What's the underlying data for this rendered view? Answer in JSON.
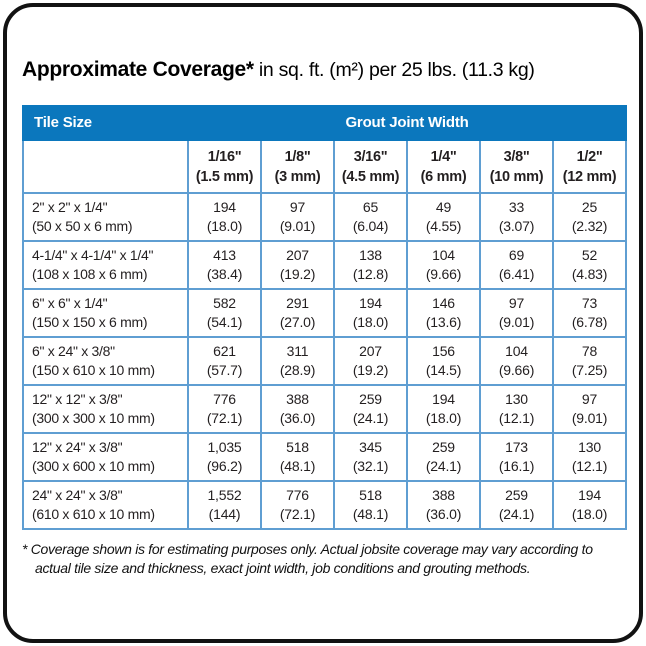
{
  "chart_data": {
    "type": "table",
    "title_bold": "Approximate Coverage*",
    "title_rest": " in sq. ft. (m²) per 25 lbs. (11.3 kg)",
    "header": {
      "tile_size": "Tile Size",
      "grout_joint_width": "Grout Joint Width"
    },
    "columns": [
      {
        "width": "1/16\"",
        "metric": "(1.5 mm)"
      },
      {
        "width": "1/8\"",
        "metric": "(3 mm)"
      },
      {
        "width": "3/16\"",
        "metric": "(4.5 mm)"
      },
      {
        "width": "1/4\"",
        "metric": "(6 mm)"
      },
      {
        "width": "3/8\"",
        "metric": "(10 mm)"
      },
      {
        "width": "1/2\"",
        "metric": "(12 mm)"
      }
    ],
    "rows": [
      {
        "tile": "2\" x 2\" x 1/4\"",
        "tile_metric": "(50 x 50 x 6 mm)",
        "values": [
          [
            "194",
            "(18.0)"
          ],
          [
            "97",
            "(9.01)"
          ],
          [
            "65",
            "(6.04)"
          ],
          [
            "49",
            "(4.55)"
          ],
          [
            "33",
            "(3.07)"
          ],
          [
            "25",
            "(2.32)"
          ]
        ]
      },
      {
        "tile": "4-1/4\" x 4-1/4\" x 1/4\"",
        "tile_metric": "(108 x 108 x 6 mm)",
        "values": [
          [
            "413",
            "(38.4)"
          ],
          [
            "207",
            "(19.2)"
          ],
          [
            "138",
            "(12.8)"
          ],
          [
            "104",
            "(9.66)"
          ],
          [
            "69",
            "(6.41)"
          ],
          [
            "52",
            "(4.83)"
          ]
        ]
      },
      {
        "tile": "6\" x 6\" x 1/4\"",
        "tile_metric": "(150 x 150 x 6 mm)",
        "values": [
          [
            "582",
            "(54.1)"
          ],
          [
            "291",
            "(27.0)"
          ],
          [
            "194",
            "(18.0)"
          ],
          [
            "146",
            "(13.6)"
          ],
          [
            "97",
            "(9.01)"
          ],
          [
            "73",
            "(6.78)"
          ]
        ]
      },
      {
        "tile": "6\" x 24\" x 3/8\"",
        "tile_metric": "(150 x 610 x 10 mm)",
        "values": [
          [
            "621",
            "(57.7)"
          ],
          [
            "311",
            "(28.9)"
          ],
          [
            "207",
            "(19.2)"
          ],
          [
            "156",
            "(14.5)"
          ],
          [
            "104",
            "(9.66)"
          ],
          [
            "78",
            "(7.25)"
          ]
        ]
      },
      {
        "tile": "12\" x 12\" x 3/8\"",
        "tile_metric": "(300 x 300 x 10 mm)",
        "values": [
          [
            "776",
            "(72.1)"
          ],
          [
            "388",
            "(36.0)"
          ],
          [
            "259",
            "(24.1)"
          ],
          [
            "194",
            "(18.0)"
          ],
          [
            "130",
            "(12.1)"
          ],
          [
            "97",
            "(9.01)"
          ]
        ]
      },
      {
        "tile": "12\" x 24\" x 3/8\"",
        "tile_metric": "(300 x 600 x 10 mm)",
        "values": [
          [
            "1,035",
            "(96.2)"
          ],
          [
            "518",
            "(48.1)"
          ],
          [
            "345",
            "(32.1)"
          ],
          [
            "259",
            "(24.1)"
          ],
          [
            "173",
            "(16.1)"
          ],
          [
            "130",
            "(12.1)"
          ]
        ]
      },
      {
        "tile": "24\" x 24\" x 3/8\"",
        "tile_metric": "(610 x 610 x 10 mm)",
        "values": [
          [
            "1,552",
            "(144)"
          ],
          [
            "776",
            "(72.1)"
          ],
          [
            "518",
            "(48.1)"
          ],
          [
            "388",
            "(36.0)"
          ],
          [
            "259",
            "(24.1)"
          ],
          [
            "194",
            "(18.0)"
          ]
        ]
      }
    ],
    "footnote_marker": "*",
    "footnote": "Coverage shown is for estimating purposes only. Actual jobsite coverage may vary according to actual tile size and thickness, exact joint width, job conditions and grouting methods."
  },
  "colors": {
    "header_blue": "#0b77bd",
    "border_blue": "#5f9ed2",
    "text_dark": "#231f20",
    "frame_black": "#121212"
  }
}
